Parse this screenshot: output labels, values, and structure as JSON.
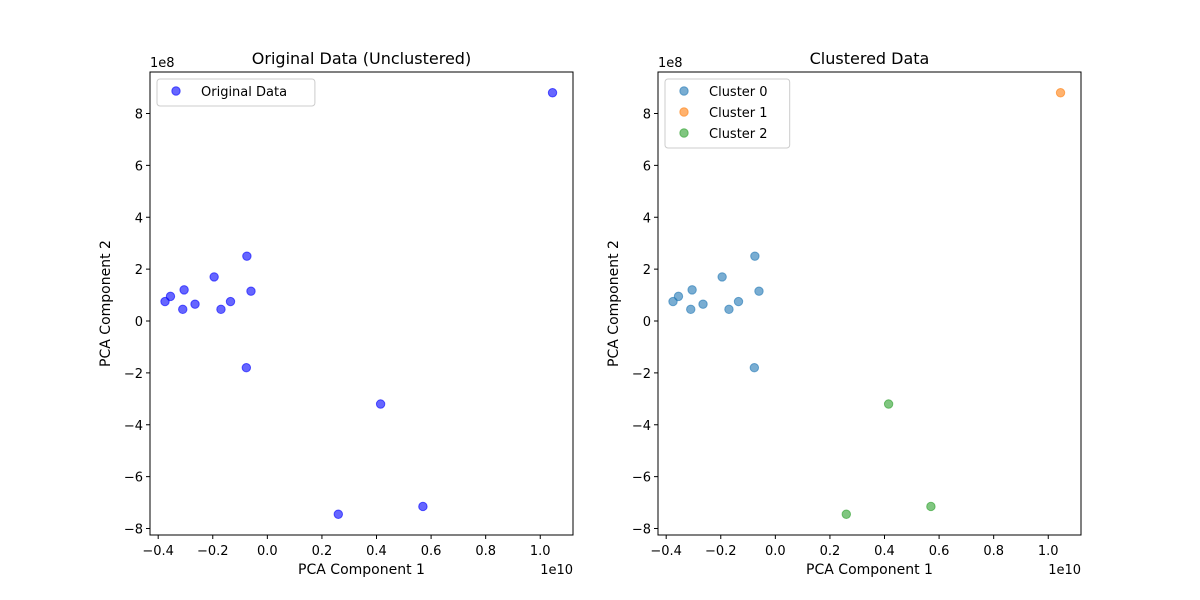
{
  "chart_data": [
    {
      "type": "scatter",
      "title": "Original Data (Unclustered)",
      "xlabel": "PCA Component 1",
      "ylabel": "PCA Component 2",
      "x_offset_label": "1e10",
      "y_offset_label": "1e8",
      "xlim": [
        -0.43,
        1.12
      ],
      "ylim": [
        -8.25,
        9.6
      ],
      "x_ticks": [
        -0.4,
        -0.2,
        0.0,
        0.2,
        0.4,
        0.6,
        0.8,
        1.0
      ],
      "x_tick_labels": [
        "−0.4",
        "−0.2",
        "0.0",
        "0.2",
        "0.4",
        "0.6",
        "0.8",
        "1.0"
      ],
      "y_ticks": [
        -8,
        -6,
        -4,
        -2,
        0,
        2,
        4,
        6,
        8
      ],
      "y_tick_labels": [
        "−8",
        "−6",
        "−4",
        "−2",
        "0",
        "2",
        "4",
        "6",
        "8"
      ],
      "legend_position": "top-left",
      "grid": false,
      "series": [
        {
          "name": "Original Data",
          "color": "#0000ff",
          "points": [
            {
              "x": -0.375,
              "y": 0.75
            },
            {
              "x": -0.355,
              "y": 0.95
            },
            {
              "x": -0.305,
              "y": 1.2
            },
            {
              "x": -0.31,
              "y": 0.45
            },
            {
              "x": -0.265,
              "y": 0.65
            },
            {
              "x": -0.195,
              "y": 1.7
            },
            {
              "x": -0.17,
              "y": 0.45
            },
            {
              "x": -0.135,
              "y": 0.75
            },
            {
              "x": -0.075,
              "y": 2.5
            },
            {
              "x": -0.06,
              "y": 1.15
            },
            {
              "x": -0.077,
              "y": -1.8
            },
            {
              "x": 0.415,
              "y": -3.2
            },
            {
              "x": 0.26,
              "y": -7.45
            },
            {
              "x": 0.57,
              "y": -7.15
            },
            {
              "x": 1.045,
              "y": 8.8
            }
          ]
        }
      ]
    },
    {
      "type": "scatter",
      "title": "Clustered Data",
      "xlabel": "PCA Component 1",
      "ylabel": "PCA Component 2",
      "x_offset_label": "1e10",
      "y_offset_label": "1e8",
      "xlim": [
        -0.43,
        1.12
      ],
      "ylim": [
        -8.25,
        9.6
      ],
      "x_ticks": [
        -0.4,
        -0.2,
        0.0,
        0.2,
        0.4,
        0.6,
        0.8,
        1.0
      ],
      "x_tick_labels": [
        "−0.4",
        "−0.2",
        "0.0",
        "0.2",
        "0.4",
        "0.6",
        "0.8",
        "1.0"
      ],
      "y_ticks": [
        -8,
        -6,
        -4,
        -2,
        0,
        2,
        4,
        6,
        8
      ],
      "y_tick_labels": [
        "−8",
        "−6",
        "−4",
        "−2",
        "0",
        "2",
        "4",
        "6",
        "8"
      ],
      "legend_position": "top-left",
      "grid": false,
      "series": [
        {
          "name": "Cluster 0",
          "color": "#1f77b4",
          "points": [
            {
              "x": -0.375,
              "y": 0.75
            },
            {
              "x": -0.355,
              "y": 0.95
            },
            {
              "x": -0.305,
              "y": 1.2
            },
            {
              "x": -0.31,
              "y": 0.45
            },
            {
              "x": -0.265,
              "y": 0.65
            },
            {
              "x": -0.195,
              "y": 1.7
            },
            {
              "x": -0.17,
              "y": 0.45
            },
            {
              "x": -0.135,
              "y": 0.75
            },
            {
              "x": -0.075,
              "y": 2.5
            },
            {
              "x": -0.06,
              "y": 1.15
            },
            {
              "x": -0.077,
              "y": -1.8
            }
          ]
        },
        {
          "name": "Cluster 1",
          "color": "#ff7f0e",
          "points": [
            {
              "x": 1.045,
              "y": 8.8
            }
          ]
        },
        {
          "name": "Cluster 2",
          "color": "#2ca02c",
          "points": [
            {
              "x": 0.415,
              "y": -3.2
            },
            {
              "x": 0.26,
              "y": -7.45
            },
            {
              "x": 0.57,
              "y": -7.15
            }
          ]
        }
      ]
    }
  ]
}
